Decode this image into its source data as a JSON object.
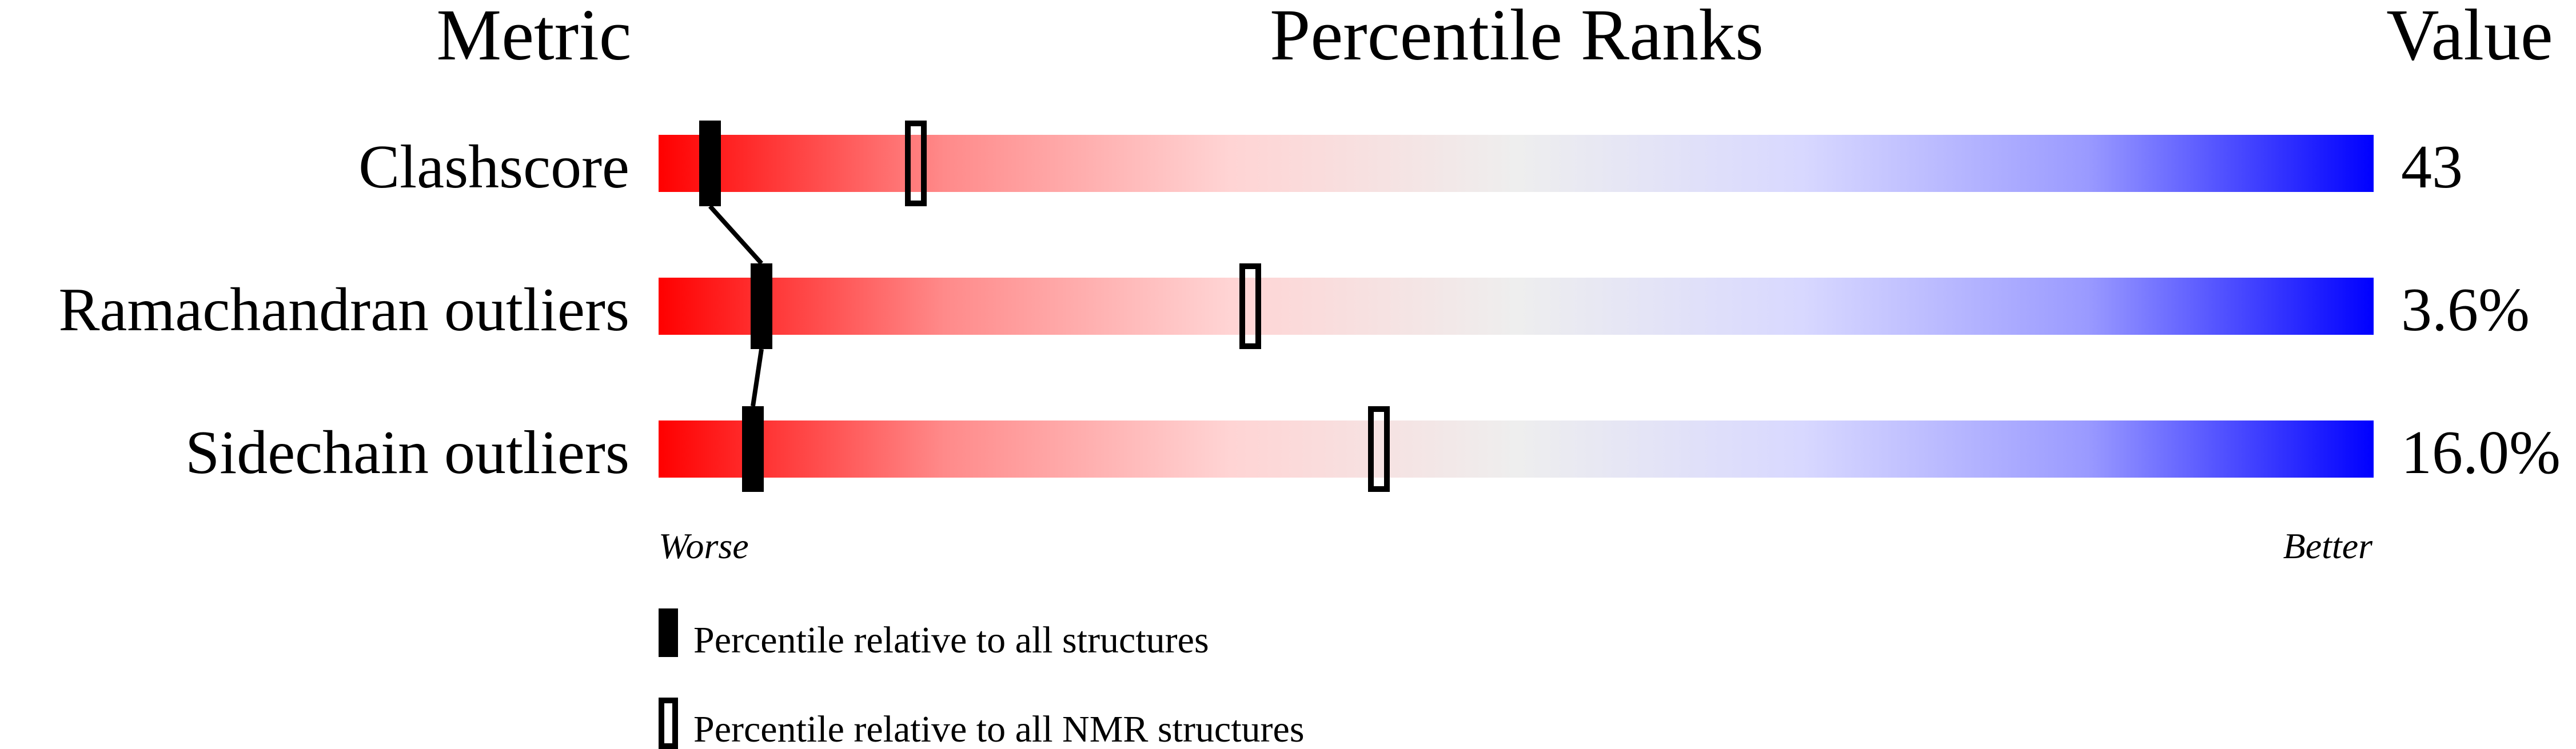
{
  "chart_data": {
    "type": "percentile-slider",
    "headers": {
      "metric": "Metric",
      "ranks": "Percentile Ranks",
      "value": "Value"
    },
    "xlim": [
      0,
      100
    ],
    "axis_labels": {
      "left": "Worse",
      "right": "Better"
    },
    "gradient_colors": [
      "#ff0000",
      "#ff8a8a",
      "#ffd4d4",
      "#eeeeee",
      "#d8d8ff",
      "#9a9aff",
      "#0000ff"
    ],
    "rows": [
      {
        "metric": "Clashscore",
        "value": "43",
        "percentile_all": 3,
        "percentile_nmr": 15
      },
      {
        "metric": "Ramachandran outliers",
        "value": "3.6%",
        "percentile_all": 6,
        "percentile_nmr": 34.5
      },
      {
        "metric": "Sidechain outliers",
        "value": "16.0%",
        "percentile_all": 5.5,
        "percentile_nmr": 42
      }
    ],
    "legend": [
      {
        "marker": "filled",
        "label": "Percentile relative to all structures"
      },
      {
        "marker": "hollow",
        "label": "Percentile relative to all NMR structures"
      }
    ]
  }
}
